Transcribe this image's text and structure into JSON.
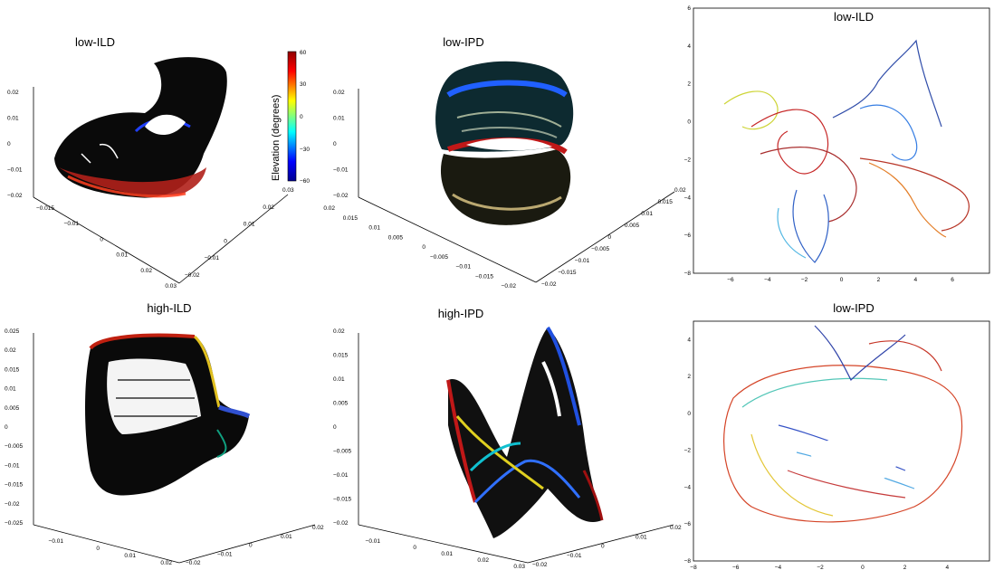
{
  "colors": {
    "low": "#00008f",
    "mid1": "#00ffff",
    "mid2": "#ffff00",
    "high": "#8f0000",
    "dot": "#0a2a0a"
  },
  "colorbar": {
    "label": "Elevation (degrees)",
    "ticks": [
      "60",
      "30",
      "0",
      "−30",
      "−60"
    ]
  },
  "chart_data": [
    {
      "id": "p1",
      "type": "scatter",
      "title": "low-ILD",
      "zticks": [
        "0.02",
        "0.01",
        "0",
        "−0.01",
        "−0.02"
      ],
      "left_ticks": [
        "−0.015",
        "−0.01",
        "0",
        "0.01",
        "0.02",
        "0.03"
      ],
      "right_ticks": [
        "−0.02",
        "−0.01",
        "0",
        "0.01",
        "0.02",
        "0.03"
      ]
    },
    {
      "id": "p2",
      "type": "scatter",
      "title": "low-IPD",
      "zticks": [
        "0.02",
        "0.01",
        "0",
        "−0.01",
        "−0.02"
      ],
      "left_ticks": [
        "0.02",
        "0.015",
        "0.01",
        "0.005",
        "0",
        "−0.005",
        "−0.01",
        "−0.015",
        "−0.02"
      ],
      "right_ticks": [
        "−0.02",
        "−0.015",
        "−0.01",
        "−0.005",
        "0",
        "0.005",
        "0.01",
        "0.015",
        "0.02"
      ]
    },
    {
      "id": "p3",
      "type": "line",
      "title": "low-ILD",
      "xticks": [
        "−6",
        "−4",
        "−2",
        "0",
        "2",
        "4",
        "6"
      ],
      "yticks": [
        "6",
        "4",
        "2",
        "0",
        "−2",
        "−4",
        "−6",
        "−8"
      ],
      "xlim": [
        -8,
        8
      ],
      "ylim": [
        -8,
        6
      ]
    },
    {
      "id": "p4",
      "type": "scatter",
      "title": "high-ILD",
      "zticks": [
        "0.025",
        "0.02",
        "0.015",
        "0.01",
        "0.005",
        "0",
        "−0.005",
        "−0.01",
        "−0.015",
        "−0.02",
        "−0.025"
      ],
      "left_ticks": [
        "−0.01",
        "0",
        "0.01",
        "0.02"
      ],
      "right_ticks": [
        "−0.02",
        "−0.01",
        "0",
        "0.01",
        "0.02"
      ]
    },
    {
      "id": "p5",
      "type": "scatter",
      "title": "high-IPD",
      "zticks": [
        "0.02",
        "0.015",
        "0.01",
        "0.005",
        "0",
        "−0.005",
        "−0.01",
        "−0.015",
        "−0.02"
      ],
      "left_ticks": [
        "−0.01",
        "0",
        "0.01",
        "0.02",
        "0.03"
      ],
      "right_ticks": [
        "−0.02",
        "−0.01",
        "0",
        "0.01",
        "0.02"
      ]
    },
    {
      "id": "p6",
      "type": "line",
      "title": "low-IPD",
      "xticks": [
        "−8",
        "−6",
        "−4",
        "−2",
        "0",
        "2",
        "4"
      ],
      "yticks": [
        "4",
        "2",
        "0",
        "−2",
        "−4",
        "−6",
        "−8"
      ],
      "xlim": [
        -8,
        6
      ],
      "ylim": [
        -8,
        5
      ]
    }
  ]
}
